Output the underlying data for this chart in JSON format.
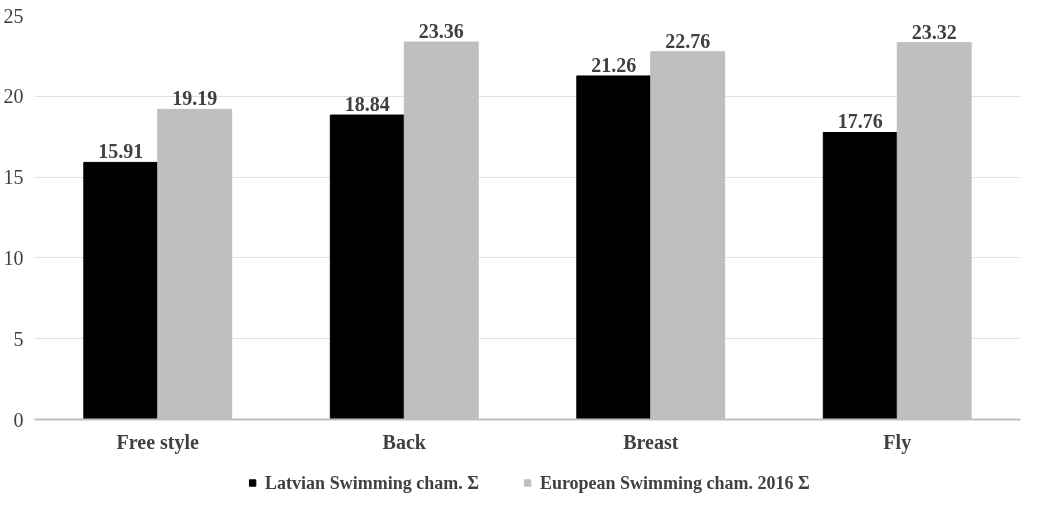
{
  "chart_data": {
    "type": "bar",
    "categories": [
      "Free style",
      "Back",
      "Breast",
      "Fly"
    ],
    "series": [
      {
        "name": "Latvian Swimming cham. Σ",
        "color": "#000000",
        "values": [
          15.91,
          18.84,
          21.26,
          17.76
        ]
      },
      {
        "name": "European Swimming cham. 2016 Σ",
        "color": "#bfbfbf",
        "values": [
          19.19,
          23.36,
          22.76,
          23.32
        ]
      }
    ],
    "ylim": [
      0,
      25
    ],
    "yticks": [
      0,
      5,
      10,
      15,
      20,
      25
    ],
    "grid": "y",
    "legend": "bottom",
    "data_labels": true
  }
}
